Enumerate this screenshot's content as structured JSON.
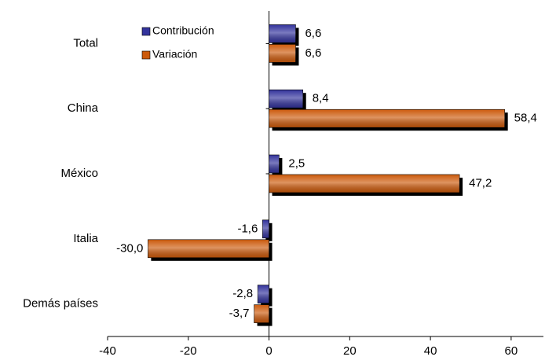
{
  "chart_data": {
    "type": "hbar",
    "categories": [
      "Total",
      "China",
      "México",
      "Italia",
      "Demás países"
    ],
    "series": [
      {
        "name": "Contribución",
        "color": "#33339c",
        "values": [
          6.6,
          8.4,
          2.5,
          -1.6,
          -2.8
        ],
        "value_labels": [
          "6,6",
          "8,4",
          "2,5",
          "-1,6",
          "-2,8"
        ]
      },
      {
        "name": "Variación",
        "color": "#cc5a0c",
        "values": [
          6.6,
          58.4,
          47.2,
          -30.0,
          -3.7
        ],
        "value_labels": [
          "6,6",
          "58,4",
          "47,2",
          "-30,0",
          "-3,7"
        ]
      }
    ],
    "xlim": [
      -40,
      68
    ],
    "xticks": [
      -40,
      -20,
      0,
      20,
      40,
      60
    ]
  }
}
